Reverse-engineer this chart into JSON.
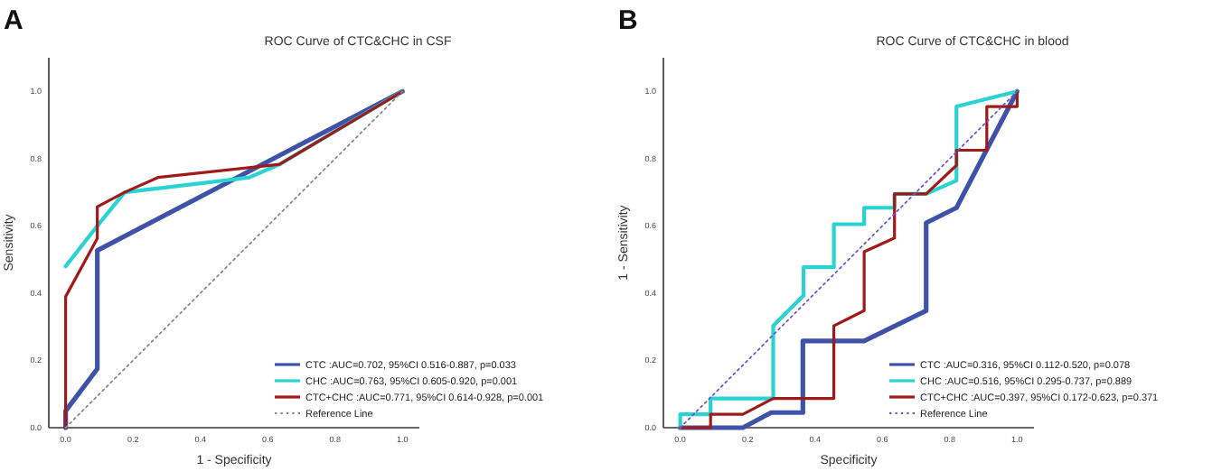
{
  "chart_data": [
    {
      "type": "line",
      "title": "ROC Curve of CTC&CHC in CSF",
      "xlabel": "1 - Specificity",
      "ylabel": "Sensitivity",
      "annotations": [
        "A"
      ],
      "xlim": [
        -0.05,
        1.05
      ],
      "ylim": [
        0,
        1.1
      ],
      "xticks": [
        {
          "value": 0,
          "label": "0.0"
        },
        {
          "value": 0.2,
          "label": "0.2"
        },
        {
          "value": 0.4,
          "label": "0.4"
        },
        {
          "value": 0.6,
          "label": "0.6"
        },
        {
          "value": 0.8,
          "label": "0.8"
        },
        {
          "value": 1,
          "label": "1.0"
        }
      ],
      "yticks": [
        {
          "value": 0,
          "label": "0.0"
        },
        {
          "value": 0.2,
          "label": "0.2"
        },
        {
          "value": 0.4,
          "label": "0.4"
        },
        {
          "value": 0.6,
          "label": "0.6"
        },
        {
          "value": 0.8,
          "label": "0.8"
        },
        {
          "value": 1,
          "label": "1.0"
        }
      ],
      "grid": false,
      "legend": "bottom right",
      "marker": "none",
      "line_style": "solid",
      "series": [
        {
          "name": "CTC :AUC=0.702, 95%CI 0.516-0.887, p=0.033",
          "color": "#3d52a8",
          "x": [
            0,
            0,
            0.094,
            0.094,
            1
          ],
          "values": [
            0,
            0.05,
            0.175,
            0.527,
            1
          ]
        },
        {
          "name": "CHC :AUC=0.763, 95%CI 0.605-0.920, p=0.001",
          "color": "#2ad2d2",
          "x": [
            0,
            0.094,
            0.175,
            0.545,
            0.635,
            1
          ],
          "values": [
            0.48,
            0.6,
            0.7,
            0.744,
            0.783,
            1
          ]
        },
        {
          "name": "CTC+CHC :AUC=0.771, 95%CI 0.614-0.928, p=0.001",
          "color": "#a01a1a",
          "x": [
            0,
            0,
            0.094,
            0.094,
            0.175,
            0.274,
            0.635,
            1
          ],
          "values": [
            0,
            0.39,
            0.563,
            0.657,
            0.7,
            0.744,
            0.783,
            1
          ]
        },
        {
          "name": "Reference Line",
          "color": "#888888",
          "line_style": "dotted",
          "x": [
            0,
            1
          ],
          "values": [
            0,
            1
          ]
        }
      ]
    },
    {
      "type": "line",
      "title": "ROC Curve of CTC&CHC in blood",
      "xlabel": "Specificity",
      "ylabel": "1 - Sensitivity",
      "annotations": [
        "B"
      ],
      "xlim": [
        -0.05,
        1.05
      ],
      "ylim": [
        0,
        1.1
      ],
      "xticks": [
        {
          "value": 0,
          "label": "0.0"
        },
        {
          "value": 0.2,
          "label": "0.2"
        },
        {
          "value": 0.4,
          "label": "0.4"
        },
        {
          "value": 0.6,
          "label": "0.6"
        },
        {
          "value": 0.8,
          "label": "0.8"
        },
        {
          "value": 1,
          "label": "1.0"
        }
      ],
      "yticks": [
        {
          "value": 0,
          "label": "0.0"
        },
        {
          "value": 0.2,
          "label": "0.2"
        },
        {
          "value": 0.4,
          "label": "0.4"
        },
        {
          "value": 0.6,
          "label": "0.6"
        },
        {
          "value": 0.8,
          "label": "0.8"
        },
        {
          "value": 1,
          "label": "1.0"
        }
      ],
      "grid": false,
      "legend": "bottom right",
      "marker": "none",
      "line_style": "solid",
      "series": [
        {
          "name": "CTC :AUC=0.316, 95%CI 0.112-0.520, p=0.078",
          "color": "#3d52a8",
          "x": [
            0,
            0.186,
            0.27,
            0.364,
            0.364,
            0.546,
            0.73,
            0.73,
            0.82,
            1
          ],
          "values": [
            0,
            0,
            0.045,
            0.045,
            0.258,
            0.258,
            0.348,
            0.609,
            0.654,
            1
          ]
        },
        {
          "name": "CHC :AUC=0.516, 95%CI 0.295-0.737, p=0.889",
          "color": "#2ad2d2",
          "x": [
            0,
            0,
            0.09,
            0.09,
            0.276,
            0.276,
            0.366,
            0.366,
            0.456,
            0.456,
            0.546,
            0.546,
            0.636,
            0.636,
            0.73,
            0.82,
            0.82,
            1
          ],
          "values": [
            0,
            0.04,
            0.04,
            0.087,
            0.087,
            0.303,
            0.393,
            0.477,
            0.477,
            0.605,
            0.605,
            0.654,
            0.654,
            0.695,
            0.695,
            0.735,
            0.955,
            1
          ]
        },
        {
          "name": "CTC+CHC :AUC=0.397, 95%CI 0.172-0.623, p=0.371",
          "color": "#a01a1a",
          "x": [
            0,
            0.09,
            0.09,
            0.186,
            0.276,
            0.456,
            0.456,
            0.546,
            0.546,
            0.636,
            0.636,
            0.73,
            0.82,
            0.82,
            0.91,
            0.91,
            1,
            1
          ],
          "values": [
            0,
            0,
            0.04,
            0.04,
            0.087,
            0.087,
            0.303,
            0.348,
            0.523,
            0.564,
            0.695,
            0.695,
            0.78,
            0.825,
            0.825,
            0.955,
            0.955,
            1
          ]
        },
        {
          "name": "Reference Line",
          "color": "#6a5acd",
          "line_style": "dotted",
          "x": [
            0,
            1
          ],
          "values": [
            0,
            1
          ]
        }
      ]
    }
  ]
}
